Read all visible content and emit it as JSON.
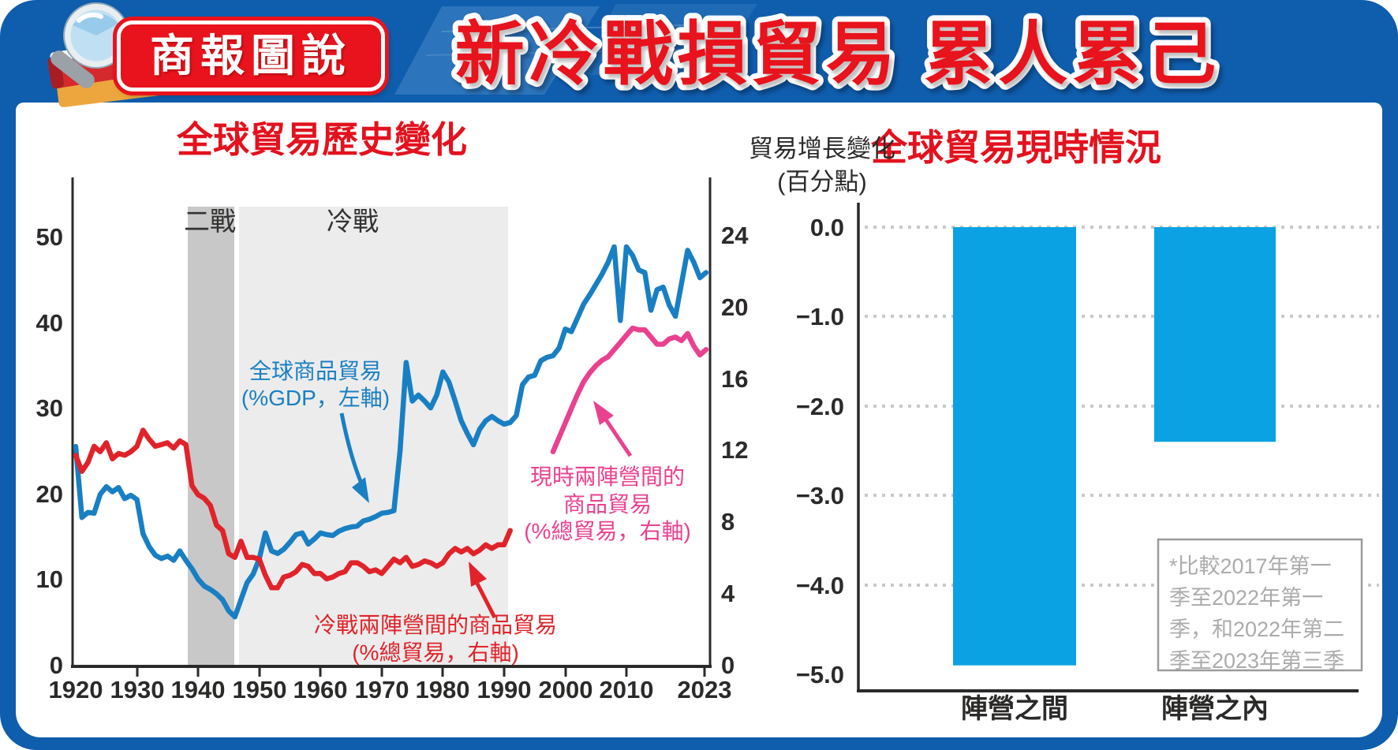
{
  "header": {
    "badge": "商報圖說",
    "title": "新冷戰損貿易 累人累己"
  },
  "left_chart": {
    "title": "全球貿易歷史變化",
    "band_labels": {
      "ww2": "二戰",
      "cold_war": "冷戰"
    },
    "y_left_ticks": [
      "50",
      "40",
      "30",
      "20",
      "10",
      "0"
    ],
    "y_right_ticks": [
      "24",
      "20",
      "16",
      "12",
      "8",
      "4",
      "0"
    ],
    "x_ticks": [
      "1920",
      "1930",
      "1940",
      "1950",
      "1960",
      "1970",
      "1980",
      "1990",
      "2000",
      "2010",
      "2023"
    ],
    "annotations": {
      "blue_line1": "全球商品貿易",
      "blue_line2": "(%GDP，左軸)",
      "red_line1": "冷戰兩陣營間的商品貿易",
      "red_line2": "(%總貿易，右軸)",
      "pink_line1": "現時兩陣營間的",
      "pink_line2": "商品貿易",
      "pink_line3": "(%總貿易，右軸)"
    }
  },
  "right_chart": {
    "title": "全球貿易現時情況",
    "ylabel_line1": "貿易增長變化",
    "ylabel_line2": "(百分點)",
    "y_ticks": [
      "0.0",
      "−1.0",
      "−2.0",
      "−3.0",
      "−4.0",
      "−5.0"
    ],
    "categories": [
      "陣營之間",
      "陣營之內"
    ],
    "footnote_lines": [
      "*比較2017年第一",
      "季至2022年第一",
      "季，和2022年第二",
      "季至2023年第三季"
    ]
  },
  "colors": {
    "frame_blue": "#0f5dad",
    "title_red": "#e8131c",
    "chart_title_red": "#e3121e",
    "line_blue": "#197fc3",
    "line_red": "#e0232a",
    "line_pink": "#e9418f",
    "bar_blue": "#0aa2e2",
    "ww2_band": "#c8c8c8",
    "coldwar_band": "#ececec",
    "axis_black": "#2b2a29",
    "footnote_gray": "#ababab"
  },
  "chart_data": [
    {
      "type": "line",
      "title": "全球貿易歷史變化",
      "xlabel": "",
      "x_range": [
        1920,
        2023
      ],
      "left_axis": {
        "label": "%GDP",
        "range": [
          0,
          50
        ],
        "ticks": [
          50,
          40,
          30,
          20,
          10,
          0
        ]
      },
      "right_axis": {
        "label": "%總貿易",
        "range": [
          0,
          24
        ],
        "ticks": [
          24,
          20,
          16,
          12,
          8,
          4,
          0
        ]
      },
      "shaded_periods": [
        {
          "label": "二戰",
          "from": 1939,
          "to": 1946
        },
        {
          "label": "冷戰",
          "from": 1947,
          "to": 1991
        }
      ],
      "series": [
        {
          "name": "全球商品貿易(%GDP，左軸)",
          "axis": "left",
          "color": "#197fc3",
          "points": [
            [
              1920,
              25.5
            ],
            [
              1921,
              17.2
            ],
            [
              1922,
              17.8
            ],
            [
              1923,
              17.7
            ],
            [
              1924,
              19.9
            ],
            [
              1925,
              20.8
            ],
            [
              1926,
              20.2
            ],
            [
              1927,
              20.7
            ],
            [
              1928,
              19.4
            ],
            [
              1929,
              19.8
            ],
            [
              1930,
              19.3
            ],
            [
              1931,
              15.3
            ],
            [
              1932,
              13.8
            ],
            [
              1933,
              12.8
            ],
            [
              1934,
              12.4
            ],
            [
              1935,
              12.7
            ],
            [
              1936,
              12.2
            ],
            [
              1937,
              13.3
            ],
            [
              1938,
              12.2
            ],
            [
              1939,
              11.2
            ],
            [
              1940,
              10.0
            ],
            [
              1941,
              9.2
            ],
            [
              1942,
              8.8
            ],
            [
              1943,
              8.3
            ],
            [
              1944,
              7.6
            ],
            [
              1945,
              6.3
            ],
            [
              1946,
              5.6
            ],
            [
              1947,
              7.6
            ],
            [
              1948,
              9.6
            ],
            [
              1949,
              10.6
            ],
            [
              1950,
              12.4
            ],
            [
              1951,
              15.4
            ],
            [
              1952,
              13.3
            ],
            [
              1953,
              13.0
            ],
            [
              1954,
              13.5
            ],
            [
              1955,
              14.3
            ],
            [
              1956,
              15.2
            ],
            [
              1957,
              15.4
            ],
            [
              1958,
              14.1
            ],
            [
              1959,
              14.7
            ],
            [
              1960,
              15.4
            ],
            [
              1961,
              15.2
            ],
            [
              1962,
              15.1
            ],
            [
              1963,
              15.6
            ],
            [
              1964,
              15.9
            ],
            [
              1965,
              16.1
            ],
            [
              1966,
              16.2
            ],
            [
              1967,
              16.8
            ],
            [
              1968,
              17.0
            ],
            [
              1969,
              17.3
            ],
            [
              1970,
              17.7
            ],
            [
              1971,
              17.8
            ],
            [
              1972,
              18.0
            ],
            [
              1973,
              25.0
            ],
            [
              1974,
              35.3
            ],
            [
              1975,
              30.8
            ],
            [
              1976,
              31.5
            ],
            [
              1977,
              30.8
            ],
            [
              1978,
              30.0
            ],
            [
              1979,
              31.5
            ],
            [
              1980,
              34.2
            ],
            [
              1981,
              33.0
            ],
            [
              1982,
              30.8
            ],
            [
              1983,
              28.5
            ],
            [
              1984,
              27.0
            ],
            [
              1985,
              25.7
            ],
            [
              1986,
              27.5
            ],
            [
              1987,
              28.5
            ],
            [
              1988,
              29.0
            ],
            [
              1989,
              28.5
            ],
            [
              1990,
              28.1
            ],
            [
              1991,
              28.3
            ],
            [
              1992,
              29.1
            ],
            [
              1993,
              32.7
            ],
            [
              1994,
              33.6
            ],
            [
              1995,
              33.8
            ],
            [
              1996,
              35.5
            ],
            [
              1997,
              35.9
            ],
            [
              1998,
              36.1
            ],
            [
              1999,
              37.0
            ],
            [
              2000,
              39.2
            ],
            [
              2001,
              38.9
            ],
            [
              2002,
              40.5
            ],
            [
              2003,
              42.1
            ],
            [
              2004,
              43.2
            ],
            [
              2005,
              44.4
            ],
            [
              2006,
              45.6
            ],
            [
              2007,
              47.0
            ],
            [
              2008,
              48.8
            ],
            [
              2009,
              40.2
            ],
            [
              2010,
              48.8
            ],
            [
              2011,
              47.8
            ],
            [
              2012,
              46.1
            ],
            [
              2013,
              45.8
            ],
            [
              2014,
              41.4
            ],
            [
              2015,
              43.8
            ],
            [
              2016,
              44.1
            ],
            [
              2017,
              42.0
            ],
            [
              2018,
              40.7
            ],
            [
              2019,
              44.5
            ],
            [
              2020,
              48.4
            ],
            [
              2021,
              47.0
            ],
            [
              2022,
              45.2
            ],
            [
              2023,
              45.8
            ]
          ]
        },
        {
          "name": "冷戰兩陣營間的商品貿易(%總貿易，右軸)",
          "axis": "right",
          "color": "#e0232a",
          "points": [
            [
              1920,
              11.7
            ],
            [
              1921,
              10.8
            ],
            [
              1922,
              11.3
            ],
            [
              1923,
              12.2
            ],
            [
              1924,
              11.9
            ],
            [
              1925,
              12.4
            ],
            [
              1926,
              11.5
            ],
            [
              1927,
              11.8
            ],
            [
              1928,
              11.7
            ],
            [
              1929,
              11.9
            ],
            [
              1930,
              12.2
            ],
            [
              1931,
              13.1
            ],
            [
              1932,
              12.6
            ],
            [
              1933,
              12.2
            ],
            [
              1934,
              12.3
            ],
            [
              1935,
              12.4
            ],
            [
              1936,
              12.1
            ],
            [
              1937,
              12.5
            ],
            [
              1938,
              12.3
            ],
            [
              1939,
              10.0
            ],
            [
              1940,
              9.5
            ],
            [
              1941,
              9.3
            ],
            [
              1942,
              8.9
            ],
            [
              1943,
              7.8
            ],
            [
              1944,
              7.5
            ],
            [
              1945,
              6.2
            ],
            [
              1946,
              6.0
            ],
            [
              1947,
              6.9
            ],
            [
              1948,
              6.0
            ],
            [
              1949,
              6.0
            ],
            [
              1950,
              5.9
            ],
            [
              1951,
              5.0
            ],
            [
              1952,
              4.3
            ],
            [
              1953,
              4.3
            ],
            [
              1954,
              4.9
            ],
            [
              1955,
              5.0
            ],
            [
              1956,
              5.2
            ],
            [
              1957,
              5.6
            ],
            [
              1958,
              5.5
            ],
            [
              1959,
              5.1
            ],
            [
              1960,
              5.1
            ],
            [
              1961,
              4.8
            ],
            [
              1962,
              4.9
            ],
            [
              1963,
              5.1
            ],
            [
              1964,
              5.2
            ],
            [
              1965,
              5.7
            ],
            [
              1966,
              5.7
            ],
            [
              1967,
              5.5
            ],
            [
              1968,
              5.2
            ],
            [
              1969,
              5.3
            ],
            [
              1970,
              5.1
            ],
            [
              1971,
              5.5
            ],
            [
              1972,
              5.9
            ],
            [
              1973,
              5.7
            ],
            [
              1974,
              6.0
            ],
            [
              1975,
              5.5
            ],
            [
              1976,
              5.6
            ],
            [
              1977,
              5.8
            ],
            [
              1978,
              5.7
            ],
            [
              1979,
              5.5
            ],
            [
              1980,
              5.7
            ],
            [
              1981,
              6.2
            ],
            [
              1982,
              6.5
            ],
            [
              1983,
              6.3
            ],
            [
              1984,
              6.5
            ],
            [
              1985,
              6.2
            ],
            [
              1986,
              6.4
            ],
            [
              1987,
              6.7
            ],
            [
              1988,
              6.5
            ],
            [
              1989,
              6.7
            ],
            [
              1990,
              6.7
            ],
            [
              1991,
              7.5
            ]
          ]
        },
        {
          "name": "現時兩陣營間的商品貿易(%總貿易，右軸)",
          "axis": "right",
          "color": "#e9418f",
          "points": [
            [
              1998,
              11.9
            ],
            [
              1999,
              12.7
            ],
            [
              2000,
              13.5
            ],
            [
              2001,
              14.3
            ],
            [
              2002,
              15.1
            ],
            [
              2003,
              15.8
            ],
            [
              2004,
              16.3
            ],
            [
              2005,
              16.7
            ],
            [
              2006,
              17.0
            ],
            [
              2007,
              17.2
            ],
            [
              2008,
              17.6
            ],
            [
              2009,
              18.0
            ],
            [
              2010,
              18.4
            ],
            [
              2011,
              18.8
            ],
            [
              2012,
              18.7
            ],
            [
              2013,
              18.7
            ],
            [
              2014,
              18.3
            ],
            [
              2015,
              17.9
            ],
            [
              2016,
              17.9
            ],
            [
              2017,
              18.2
            ],
            [
              2018,
              18.3
            ],
            [
              2019,
              18.1
            ],
            [
              2020,
              18.5
            ],
            [
              2021,
              17.8
            ],
            [
              2022,
              17.3
            ],
            [
              2023,
              17.6
            ]
          ]
        }
      ]
    },
    {
      "type": "bar",
      "title": "全球貿易現時情況",
      "ylabel": "貿易增長變化(百分點)",
      "categories": [
        "陣營之間",
        "陣營之內"
      ],
      "values": [
        -4.9,
        -2.4
      ],
      "ylim": [
        -5.0,
        0.0
      ],
      "grid": "dotted horizontal at 0 to -4",
      "bar_color": "#0aa2e2",
      "footnote": "*比較2017年第一季至2022年第一季，和2022年第二季至2023年第三季"
    }
  ]
}
